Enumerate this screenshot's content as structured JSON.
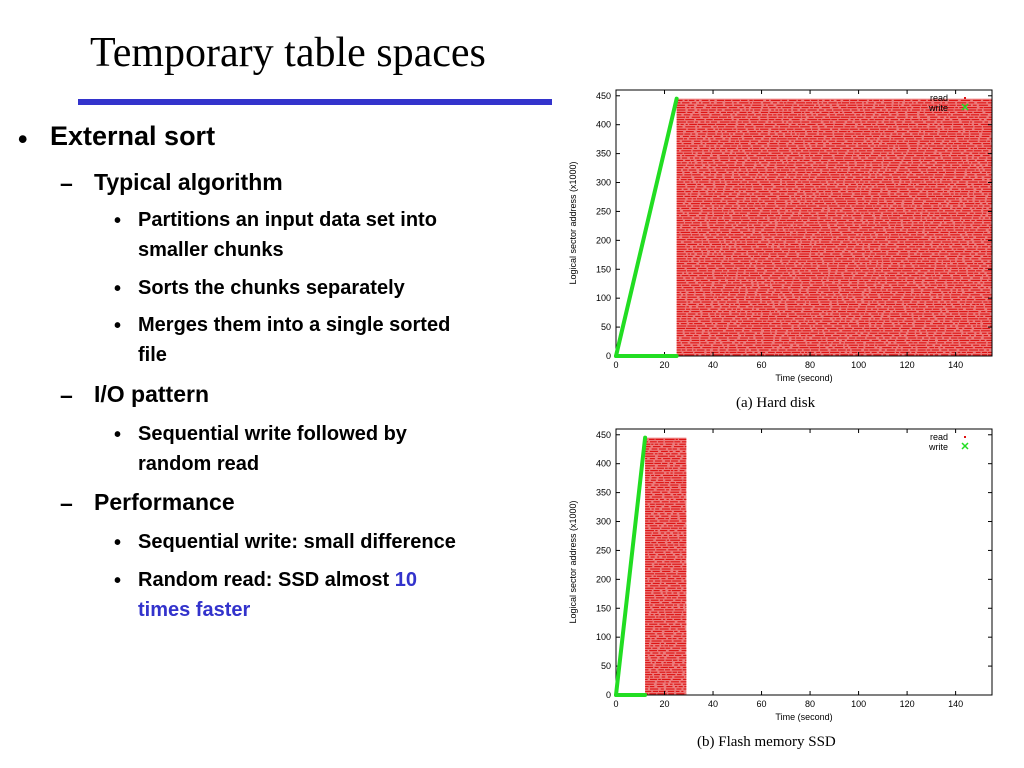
{
  "slide": {
    "title": "Temporary table spaces",
    "accent_color": "#3333cc"
  },
  "bullets": {
    "l1": "External sort",
    "l2_algorithm": "Typical algorithm",
    "algo_1_line1": "Partitions an input data set into",
    "algo_1_line2": "smaller chunks",
    "algo_2": "Sorts the chunks separately",
    "algo_3_line1": "Merges them into a single sorted",
    "algo_3_line2": "file",
    "l2_io": "I/O pattern",
    "io_1_line1": "Sequential write followed by",
    "io_1_line2": "random read",
    "l2_perf": "Performance",
    "perf_1": "Sequential write: small difference",
    "perf_2_prefix": "Random read: SSD almost ",
    "perf_2_highlight_1": "10",
    "perf_2_highlight_2": "times faster"
  },
  "chart_data": [
    {
      "type": "scatter",
      "caption": "(a) Hard disk",
      "xlabel": "Time (second)",
      "ylabel": "Logical sector address (x1000)",
      "xlim": [
        0,
        155
      ],
      "ylim": [
        0,
        460
      ],
      "xticks": [
        0,
        20,
        40,
        60,
        80,
        100,
        120,
        140
      ],
      "yticks": [
        0,
        50,
        100,
        150,
        200,
        250,
        300,
        350,
        400,
        450
      ],
      "legend": "top-right",
      "series": [
        {
          "name": "write",
          "color": "#22dd22",
          "segments": [
            [
              [
                0,
                0
              ],
              [
                25,
                445
              ]
            ],
            [
              [
                0,
                0
              ],
              [
                25,
                0
              ]
            ]
          ]
        },
        {
          "name": "read",
          "color": "#dd1111",
          "region": {
            "x": [
              25,
              155
            ],
            "y": [
              0,
              445
            ]
          }
        }
      ]
    },
    {
      "type": "scatter",
      "caption": "(b) Flash memory SSD",
      "xlabel": "Time (second)",
      "ylabel": "Logical sector address (x1000)",
      "xlim": [
        0,
        155
      ],
      "ylim": [
        0,
        460
      ],
      "xticks": [
        0,
        20,
        40,
        60,
        80,
        100,
        120,
        140
      ],
      "yticks": [
        0,
        50,
        100,
        150,
        200,
        250,
        300,
        350,
        400,
        450
      ],
      "legend": "top-right",
      "series": [
        {
          "name": "write",
          "color": "#22dd22",
          "segments": [
            [
              [
                0,
                0
              ],
              [
                12,
                445
              ]
            ],
            [
              [
                0,
                0
              ],
              [
                12,
                0
              ]
            ]
          ]
        },
        {
          "name": "read",
          "color": "#dd1111",
          "region": {
            "x": [
              12,
              29
            ],
            "y": [
              0,
              445
            ]
          }
        }
      ]
    }
  ]
}
